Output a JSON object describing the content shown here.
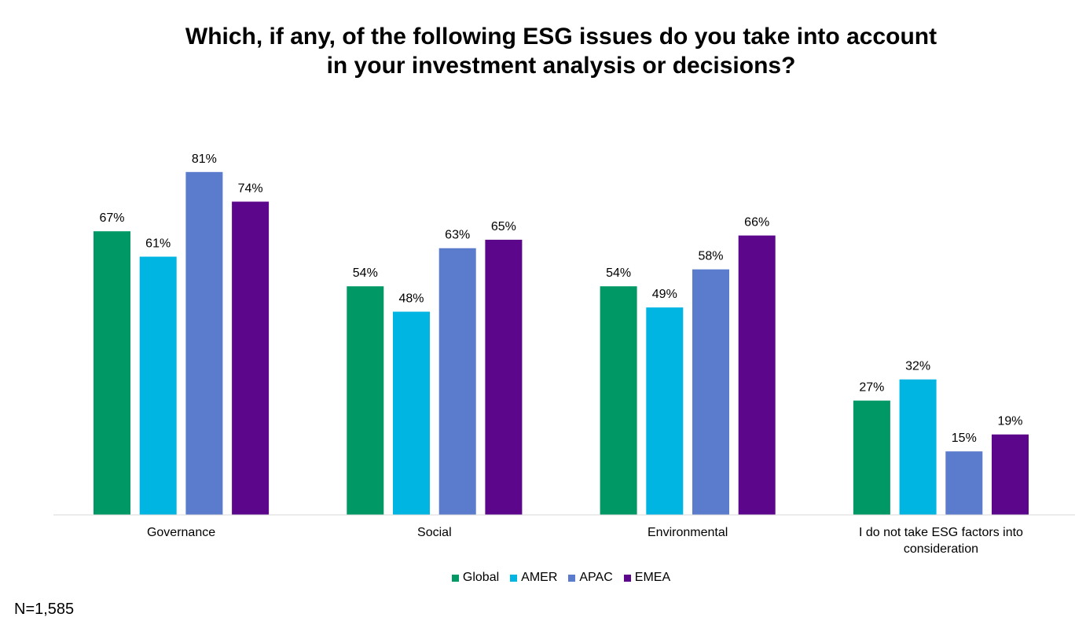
{
  "chart_data": {
    "type": "bar",
    "title_lines": [
      "Which, if any, of the following ESG issues do you take into account",
      "in your investment analysis or decisions?"
    ],
    "categories": [
      [
        "Governance"
      ],
      [
        "Social"
      ],
      [
        "Environmental"
      ],
      [
        "I do not take ESG factors into",
        "consideration"
      ]
    ],
    "series": [
      {
        "name": "Global",
        "color": "#009966",
        "values": [
          67,
          54,
          54,
          27
        ]
      },
      {
        "name": "AMER",
        "color": "#00b5e2",
        "values": [
          61,
          48,
          49,
          32
        ]
      },
      {
        "name": "APAC",
        "color": "#5b7bcc",
        "values": [
          81,
          63,
          58,
          15
        ]
      },
      {
        "name": "EMEA",
        "color": "#5c068c",
        "values": [
          74,
          65,
          66,
          19
        ]
      }
    ],
    "value_suffix": "%",
    "ylim": [
      0,
      100
    ],
    "grid": false,
    "legend_position": "bottom"
  },
  "footnote": "N=1,585"
}
